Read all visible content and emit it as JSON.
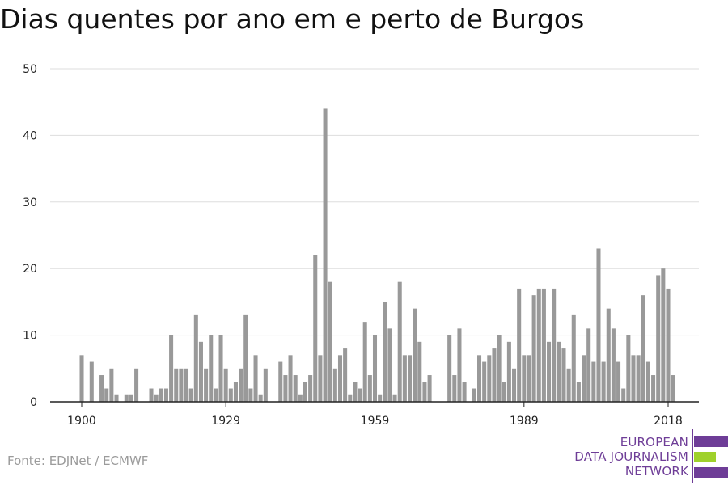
{
  "title": "Dias quentes por ano em e perto de Burgos",
  "source": "Fonte: EDJNet / ECMWF",
  "logo": {
    "line1": "EUROPEAN",
    "line2": "DATA JOURNALISM",
    "line3": "NETWORK",
    "colors": {
      "purple": "#6e3d97",
      "green": "#9fd12b"
    }
  },
  "chart_data": {
    "type": "bar",
    "x": [
      1900,
      1901,
      1902,
      1903,
      1904,
      1905,
      1906,
      1907,
      1908,
      1909,
      1910,
      1911,
      1912,
      1913,
      1914,
      1915,
      1916,
      1917,
      1918,
      1919,
      1920,
      1921,
      1922,
      1923,
      1924,
      1925,
      1926,
      1927,
      1928,
      1929,
      1930,
      1931,
      1932,
      1933,
      1934,
      1935,
      1936,
      1937,
      1938,
      1939,
      1940,
      1941,
      1942,
      1943,
      1944,
      1945,
      1946,
      1947,
      1948,
      1949,
      1950,
      1951,
      1952,
      1953,
      1954,
      1955,
      1956,
      1957,
      1958,
      1959,
      1960,
      1961,
      1962,
      1963,
      1964,
      1965,
      1966,
      1967,
      1968,
      1969,
      1970,
      1971,
      1972,
      1973,
      1974,
      1975,
      1976,
      1977,
      1978,
      1979,
      1980,
      1981,
      1982,
      1983,
      1984,
      1985,
      1986,
      1987,
      1988,
      1989,
      1990,
      1991,
      1992,
      1993,
      1994,
      1995,
      1996,
      1997,
      1998,
      1999,
      2000,
      2001,
      2002,
      2003,
      2004,
      2005,
      2006,
      2007,
      2008,
      2009,
      2010,
      2011,
      2012,
      2013,
      2014,
      2015,
      2016,
      2017,
      2018,
      2019
    ],
    "values": [
      7,
      0,
      6,
      0,
      4,
      2,
      5,
      1,
      0,
      1,
      1,
      5,
      0,
      0,
      2,
      1,
      2,
      2,
      10,
      5,
      5,
      5,
      2,
      13,
      9,
      5,
      10,
      2,
      10,
      5,
      2,
      3,
      5,
      13,
      2,
      7,
      1,
      5,
      0,
      0,
      6,
      4,
      7,
      4,
      1,
      3,
      4,
      22,
      7,
      44,
      18,
      5,
      7,
      8,
      1,
      3,
      2,
      12,
      4,
      10,
      1,
      15,
      11,
      1,
      18,
      7,
      7,
      14,
      9,
      3,
      4,
      0,
      0,
      0,
      10,
      4,
      11,
      3,
      0,
      2,
      7,
      6,
      7,
      8,
      10,
      3,
      9,
      5,
      17,
      7,
      7,
      16,
      17,
      17,
      9,
      17,
      9,
      8,
      5,
      13,
      3,
      7,
      11,
      6,
      23,
      6,
      14,
      11,
      6,
      2,
      10,
      7,
      7,
      16,
      6,
      4,
      19,
      20,
      17,
      4
    ],
    "ylim": [
      0,
      50
    ],
    "yticks": [
      0,
      10,
      20,
      30,
      40,
      50
    ],
    "xticks": [
      1900,
      1929,
      1959,
      1989,
      2018
    ],
    "grid": true,
    "colors": {
      "bar": "#999999",
      "grid": "#dddddd",
      "axis": "#222222"
    }
  }
}
